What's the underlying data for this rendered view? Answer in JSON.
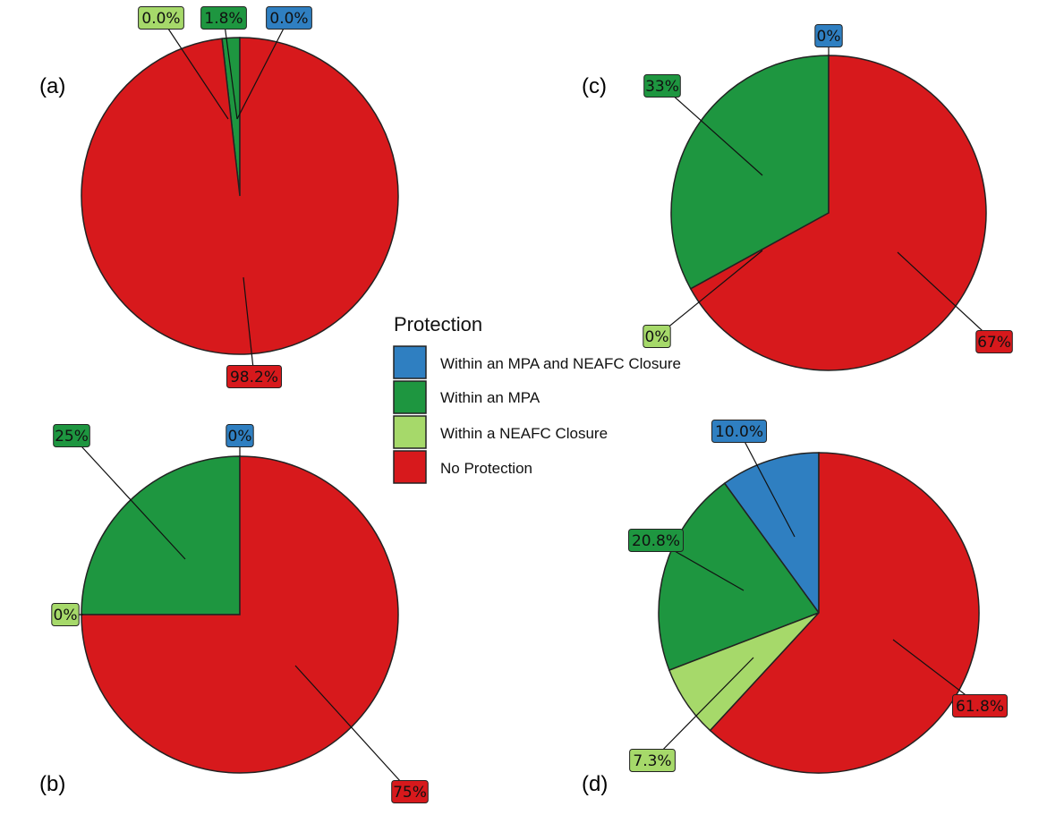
{
  "colors": {
    "Within an MPA and NEAFC Closure": "#2f7fc1",
    "Within an MPA": "#1e9640",
    "Within a NEAFC Closure": "#a6d96a",
    "No Protection": "#d7191c"
  },
  "legend": {
    "title": "Protection",
    "items": [
      {
        "key": "Within an MPA and NEAFC Closure"
      },
      {
        "key": "Within an MPA"
      },
      {
        "key": "Within a NEAFC Closure"
      },
      {
        "key": "No Protection"
      }
    ]
  },
  "chart_data": [
    {
      "type": "pie",
      "panel": "(a)",
      "categories": [
        "Within an MPA and NEAFC Closure",
        "Within an MPA",
        "Within a NEAFC Closure",
        "No Protection"
      ],
      "values": [
        0.0,
        1.8,
        0.0,
        98.2
      ],
      "labels": [
        "0.0%",
        "1.8%",
        "0.0%",
        "98.2%"
      ]
    },
    {
      "type": "pie",
      "panel": "(b)",
      "categories": [
        "Within an MPA and NEAFC Closure",
        "Within an MPA",
        "Within a NEAFC Closure",
        "No Protection"
      ],
      "values": [
        0,
        25,
        0,
        75
      ],
      "labels": [
        "0%",
        "25%",
        "0%",
        "75%"
      ]
    },
    {
      "type": "pie",
      "panel": "(c)",
      "categories": [
        "Within an MPA and NEAFC Closure",
        "Within an MPA",
        "Within a NEAFC Closure",
        "No Protection"
      ],
      "values": [
        0,
        33,
        0,
        67
      ],
      "labels": [
        "0%",
        "33%",
        "0%",
        "67%"
      ]
    },
    {
      "type": "pie",
      "panel": "(d)",
      "categories": [
        "Within an MPA and NEAFC Closure",
        "Within an MPA",
        "Within a NEAFC Closure",
        "No Protection"
      ],
      "values": [
        10.0,
        20.8,
        7.3,
        61.8
      ],
      "labels": [
        "10.0%",
        "20.8%",
        "7.3%",
        "61.8%"
      ]
    }
  ]
}
